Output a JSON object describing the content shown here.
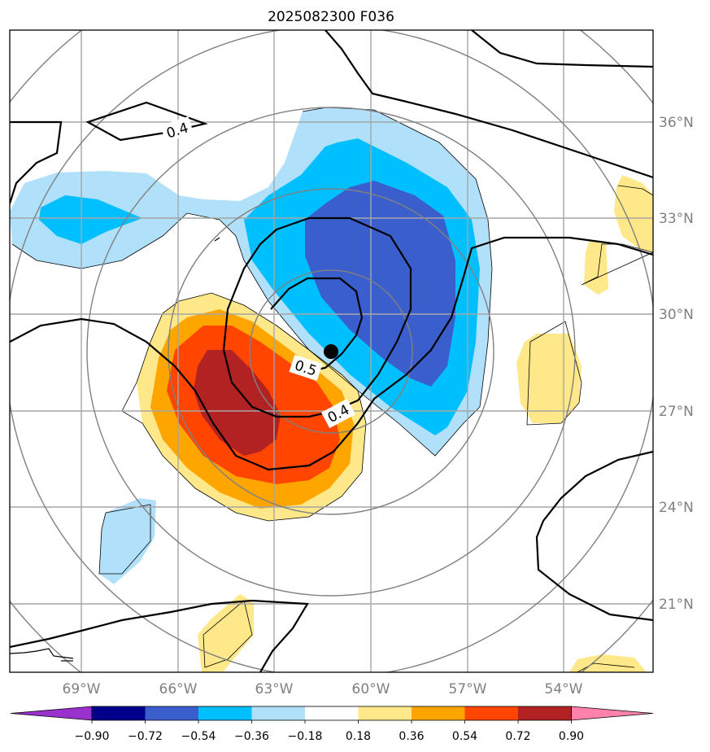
{
  "chart_data": {
    "type": "contour-map",
    "title": "2025082300 F036",
    "projection": "polar stereographic",
    "lon_ticks": [
      "69°W",
      "66°W",
      "63°W",
      "60°W",
      "57°W",
      "54°W"
    ],
    "lat_ticks": [
      "36°N",
      "33°N",
      "30°N",
      "27°N",
      "24°N",
      "21°N"
    ],
    "colorbar": {
      "extend": "both",
      "levels": [
        -0.9,
        -0.72,
        -0.54,
        -0.36,
        -0.18,
        0.18,
        0.36,
        0.54,
        0.72,
        0.9
      ],
      "labels": [
        "−0.90",
        "−0.72",
        "−0.54",
        "−0.36",
        "−0.18",
        "0.18",
        "0.36",
        "0.54",
        "0.72",
        "0.90"
      ],
      "colors": [
        "#9932cc",
        "#00008b",
        "#3a5fcd",
        "#00bfff",
        "#b0e0fa",
        "#ffffff",
        "#ffe88a",
        "#ffa500",
        "#ff4500",
        "#b22222",
        "#ff82ab"
      ]
    },
    "contour_labels": [
      "0.4",
      "0.5",
      "0.4"
    ],
    "center_marker": {
      "lat": 28.8,
      "lon": "61.2°W"
    },
    "shaded_features": [
      {
        "name": "negative anomaly",
        "range": [
          -0.72,
          -0.54
        ],
        "center_lat": 30.5,
        "center_lon": "58.5°W"
      },
      {
        "name": "positive anomaly",
        "range": [
          0.72,
          0.9
        ],
        "center_lat": 27.0,
        "center_lon": "64.5°W"
      }
    ]
  }
}
